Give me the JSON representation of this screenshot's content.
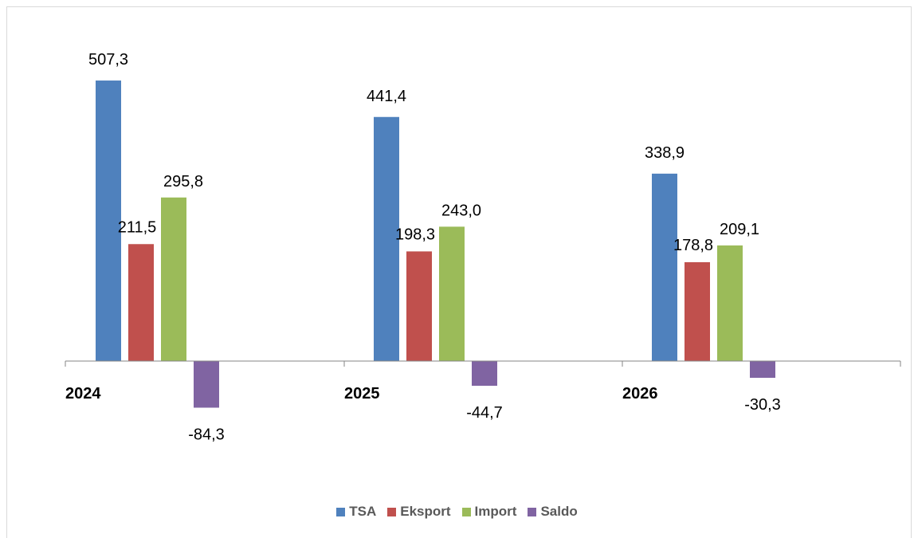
{
  "chart_data": {
    "type": "bar",
    "categories": [
      "2024",
      "2025",
      "2026"
    ],
    "series": [
      {
        "name": "TSA",
        "values": [
          507.3,
          441.4,
          338.9
        ],
        "labels": [
          "507,3",
          "441,4",
          "338,9"
        ],
        "color": "#4f81bd"
      },
      {
        "name": "Eksport",
        "values": [
          211.5,
          198.3,
          178.8
        ],
        "labels": [
          "211,5",
          "198,3",
          "178,8"
        ],
        "color": "#c0504d"
      },
      {
        "name": "Import",
        "values": [
          295.8,
          243.0,
          209.1
        ],
        "labels": [
          "295,8",
          "243,0",
          "209,1"
        ],
        "color": "#9bbb59"
      },
      {
        "name": "Saldo",
        "values": [
          -84.3,
          -44.7,
          -30.3
        ],
        "labels": [
          "-84,3",
          "-44,7",
          "-30,3"
        ],
        "color": "#8064a2"
      }
    ],
    "title": "",
    "xlabel": "",
    "ylabel": "",
    "legend_position": "bottom",
    "grid": false
  }
}
